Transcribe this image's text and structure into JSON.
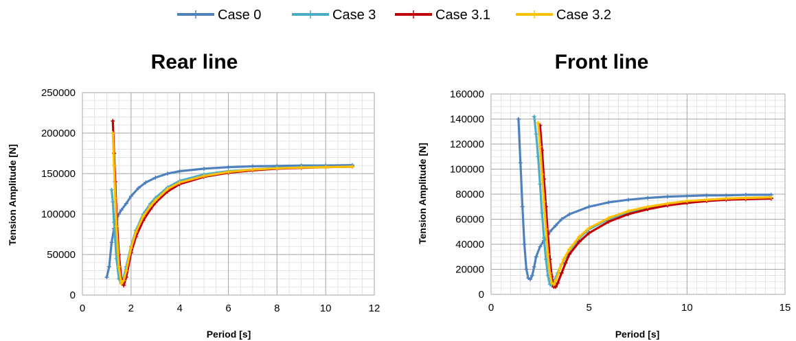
{
  "legend": [
    {
      "name": "Case 0",
      "color": "#4F81BD"
    },
    {
      "name": "Case 3",
      "color": "#4BACC6"
    },
    {
      "name": "Case 3.1",
      "color": "#C00000"
    },
    {
      "name": "Case 3.2",
      "color": "#FFC000"
    }
  ],
  "chart_data": [
    {
      "type": "line",
      "title": "Rear line",
      "xlabel": "Period [s]",
      "ylabel": "Tension Amplitude [N]",
      "xlim": [
        0,
        12
      ],
      "ylim": [
        0,
        250000
      ],
      "xticks": [
        0,
        2,
        4,
        6,
        8,
        10,
        12
      ],
      "yticks": [
        0,
        50000,
        100000,
        150000,
        200000,
        250000
      ],
      "grid": true,
      "series": [
        {
          "name": "Case 0",
          "color": "#4F81BD",
          "x": [
            1.0,
            1.1,
            1.2,
            1.3,
            1.4,
            1.5,
            1.6,
            1.8,
            2.0,
            2.3,
            2.6,
            3.0,
            3.5,
            4.0,
            5.0,
            6.0,
            7.0,
            8.0,
            9.0,
            10.0,
            11.1
          ],
          "y": [
            22000,
            35000,
            65000,
            82000,
            93000,
            100000,
            105000,
            113000,
            122000,
            132000,
            139000,
            145000,
            150000,
            153000,
            156000,
            158000,
            159000,
            159500,
            160000,
            160000,
            160500
          ]
        },
        {
          "name": "Case 3",
          "color": "#4BACC6",
          "x": [
            1.2,
            1.25,
            1.3,
            1.4,
            1.5,
            1.6,
            1.7,
            1.8,
            2.0,
            2.2,
            2.5,
            2.8,
            3.0,
            3.5,
            4.0,
            5.0,
            6.0,
            7.0,
            8.0,
            9.0,
            10.0,
            11.1
          ],
          "y": [
            130000,
            115000,
            90000,
            45000,
            20000,
            15000,
            22000,
            35000,
            60000,
            80000,
            100000,
            113000,
            120000,
            133000,
            141000,
            149000,
            153000,
            155000,
            157000,
            158000,
            158500,
            159000
          ]
        },
        {
          "name": "Case 3.1",
          "color": "#C00000",
          "x": [
            1.25,
            1.3,
            1.35,
            1.4,
            1.5,
            1.6,
            1.7,
            1.8,
            2.0,
            2.2,
            2.5,
            2.8,
            3.0,
            3.5,
            4.0,
            5.0,
            6.0,
            7.0,
            8.0,
            9.0,
            10.0,
            11.1
          ],
          "y": [
            215000,
            175000,
            140000,
            100000,
            50000,
            20000,
            12000,
            22000,
            52000,
            72000,
            92000,
            106000,
            114000,
            128000,
            137000,
            146000,
            151000,
            154000,
            156000,
            157000,
            158000,
            158500
          ]
        },
        {
          "name": "Case 3.2",
          "color": "#FFC000",
          "x": [
            1.25,
            1.3,
            1.35,
            1.4,
            1.5,
            1.6,
            1.7,
            1.8,
            2.0,
            2.2,
            2.5,
            2.8,
            3.0,
            3.5,
            4.0,
            5.0,
            6.0,
            7.0,
            8.0,
            9.0,
            10.0,
            11.1
          ],
          "y": [
            200000,
            160000,
            120000,
            85000,
            35000,
            14000,
            18000,
            30000,
            58000,
            78000,
            97000,
            110000,
            117000,
            131000,
            139000,
            147000,
            152000,
            155000,
            156500,
            157500,
            158000,
            158500
          ]
        }
      ]
    },
    {
      "type": "line",
      "title": "Front line",
      "xlabel": "Period [s]",
      "ylabel": "Tension Amplitude [N]",
      "xlim": [
        0,
        15
      ],
      "ylim": [
        0,
        160000
      ],
      "xticks": [
        0,
        5,
        10,
        15
      ],
      "yticks": [
        0,
        20000,
        40000,
        60000,
        80000,
        100000,
        120000,
        140000,
        160000
      ],
      "grid": true,
      "series": [
        {
          "name": "Case 0",
          "color": "#4F81BD",
          "x": [
            1.4,
            1.5,
            1.6,
            1.7,
            1.8,
            1.9,
            2.0,
            2.1,
            2.2,
            2.3,
            2.5,
            2.7,
            3.0,
            3.3,
            3.6,
            4.0,
            5.0,
            6.0,
            7.0,
            8.0,
            9.0,
            10.0,
            11.0,
            12.0,
            13.0,
            14.3
          ],
          "y": [
            140000,
            105000,
            70000,
            40000,
            20000,
            13000,
            12000,
            15000,
            22000,
            30000,
            38000,
            43000,
            50000,
            55000,
            60000,
            64000,
            70000,
            73500,
            75500,
            77000,
            78000,
            78500,
            79000,
            79000,
            79500,
            79500
          ]
        },
        {
          "name": "Case 3",
          "color": "#4BACC6",
          "x": [
            2.2,
            2.3,
            2.4,
            2.5,
            2.6,
            2.7,
            2.8,
            2.9,
            3.0,
            3.1,
            3.2,
            3.4,
            3.6,
            4.0,
            4.5,
            5.0,
            6.0,
            7.0,
            8.0,
            9.0,
            10.0,
            11.0,
            12.0,
            13.0,
            14.3
          ],
          "y": [
            142000,
            128000,
            110000,
            88000,
            65000,
            45000,
            28000,
            15000,
            8000,
            7000,
            10000,
            17000,
            24000,
            35000,
            45000,
            52000,
            60000,
            65500,
            69000,
            71500,
            73500,
            75000,
            76000,
            76500,
            77000
          ]
        },
        {
          "name": "Case 3.1",
          "color": "#C00000",
          "x": [
            2.5,
            2.6,
            2.7,
            2.8,
            2.9,
            3.0,
            3.1,
            3.2,
            3.3,
            3.4,
            3.6,
            3.8,
            4.0,
            4.5,
            5.0,
            6.0,
            7.0,
            8.0,
            9.0,
            10.0,
            11.0,
            12.0,
            13.0,
            14.3
          ],
          "y": [
            135000,
            115000,
            92000,
            70000,
            48000,
            28000,
            14000,
            6000,
            6000,
            9000,
            17000,
            25000,
            32000,
            42000,
            49000,
            58000,
            64000,
            68000,
            71000,
            73000,
            74500,
            75500,
            76000,
            76500
          ]
        },
        {
          "name": "Case 3.2",
          "color": "#FFC000",
          "x": [
            2.4,
            2.5,
            2.6,
            2.7,
            2.8,
            2.9,
            3.0,
            3.1,
            3.2,
            3.3,
            3.5,
            3.7,
            4.0,
            4.5,
            5.0,
            6.0,
            7.0,
            8.0,
            9.0,
            10.0,
            11.0,
            12.0,
            13.0,
            14.3
          ],
          "y": [
            137000,
            118000,
            96000,
            74000,
            52000,
            32000,
            17000,
            9000,
            8000,
            11000,
            20000,
            28000,
            36000,
            46000,
            53000,
            61000,
            66500,
            70000,
            72500,
            74500,
            75500,
            76500,
            77000,
            77500
          ]
        }
      ]
    }
  ]
}
